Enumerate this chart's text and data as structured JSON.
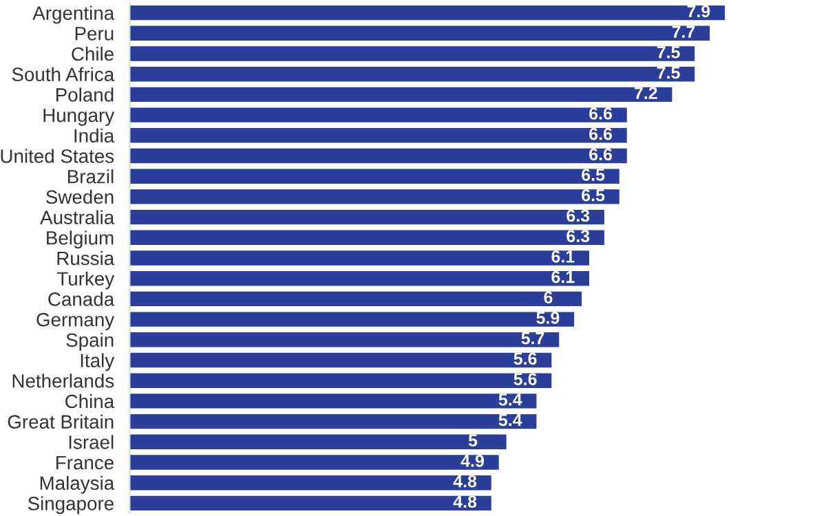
{
  "chart_data": {
    "type": "bar",
    "orientation": "horizontal",
    "data_labels": true,
    "color": "#2b3f9a",
    "categories": [
      "Argentina",
      "Peru",
      "Chile",
      "South Africa",
      "Poland",
      "Hungary",
      "India",
      "United States",
      "Brazil",
      "Sweden",
      "Australia",
      "Belgium",
      "Russia",
      "Turkey",
      "Canada",
      "Germany",
      "Spain",
      "Italy",
      "Netherlands",
      "China",
      "Great Britain",
      "Israel",
      "France",
      "Malaysia",
      "Singapore"
    ],
    "values": [
      7.9,
      7.7,
      7.5,
      7.5,
      7.2,
      6.6,
      6.6,
      6.6,
      6.5,
      6.5,
      6.3,
      6.3,
      6.1,
      6.1,
      6,
      5.9,
      5.7,
      5.6,
      5.6,
      5.4,
      5.4,
      5,
      4.9,
      4.8,
      4.8
    ]
  }
}
